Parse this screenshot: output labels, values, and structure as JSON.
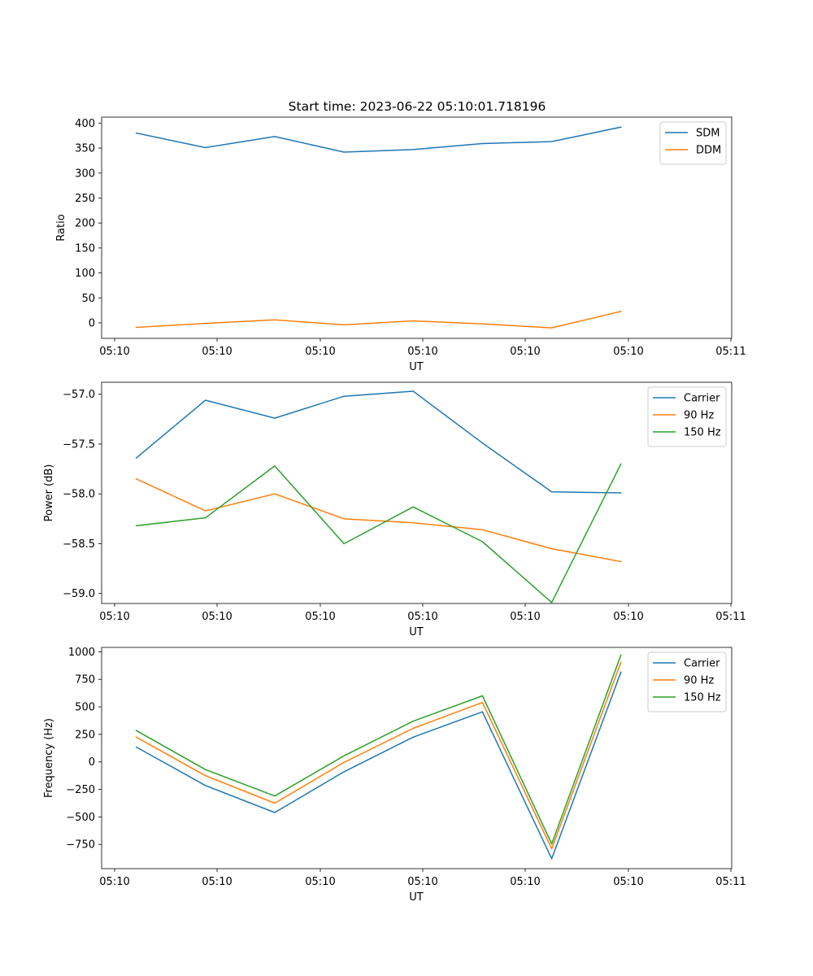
{
  "figure": {
    "title": "Start time: 2023-06-22 05:10:01.718196"
  },
  "chart_data": [
    {
      "type": "line",
      "title": "Start time: 2023-06-22 05:10:01.718196",
      "xlabel": "UT",
      "ylabel": "Ratio",
      "x_tick_labels": [
        "05:10",
        "05:10",
        "05:10",
        "05:10",
        "05:10",
        "05:10",
        "05:11"
      ],
      "y_ticks": [
        0,
        50,
        100,
        150,
        200,
        250,
        300,
        350,
        400
      ],
      "ylim": [
        -31,
        412
      ],
      "x_index": [
        0,
        1,
        2,
        3,
        4,
        5,
        6,
        7
      ],
      "xlim": [
        -0.5,
        8.6
      ],
      "grid": false,
      "legend_position": "top-right",
      "series": [
        {
          "name": "SDM",
          "color": "#1f77b4",
          "values": [
            380,
            351,
            373,
            342,
            347,
            359,
            363,
            392
          ]
        },
        {
          "name": "DDM",
          "color": "#ff7f0e",
          "values": [
            -9,
            -1,
            6,
            -4,
            4,
            -2,
            -10,
            23
          ]
        }
      ]
    },
    {
      "type": "line",
      "title": "",
      "xlabel": "UT",
      "ylabel": "Power (dB)",
      "x_tick_labels": [
        "05:10",
        "05:10",
        "05:10",
        "05:10",
        "05:10",
        "05:10",
        "05:11"
      ],
      "y_ticks": [
        -59.0,
        -58.5,
        -58.0,
        -57.5,
        -57.0
      ],
      "ylim": [
        -59.1,
        -56.88
      ],
      "x_index": [
        0,
        1,
        2,
        3,
        4,
        5,
        6,
        7
      ],
      "xlim": [
        -0.5,
        8.6
      ],
      "grid": false,
      "legend_position": "top-right",
      "series": [
        {
          "name": "Carrier",
          "color": "#1f77b4",
          "values": [
            -57.64,
            -57.06,
            -57.24,
            -57.02,
            -56.97,
            -57.49,
            -57.98,
            -57.99
          ]
        },
        {
          "name": "90 Hz",
          "color": "#ff7f0e",
          "values": [
            -57.85,
            -58.17,
            -58.0,
            -58.25,
            -58.29,
            -58.36,
            -58.55,
            -58.68
          ]
        },
        {
          "name": "150 Hz",
          "color": "#2ca02c",
          "values": [
            -58.32,
            -58.24,
            -57.72,
            -58.5,
            -58.13,
            -58.48,
            -59.09,
            -57.7
          ]
        }
      ]
    },
    {
      "type": "line",
      "title": "",
      "xlabel": "UT",
      "ylabel": "Frequency (Hz)",
      "x_tick_labels": [
        "05:10",
        "05:10",
        "05:10",
        "05:10",
        "05:10",
        "05:10",
        "05:11"
      ],
      "y_ticks": [
        -750,
        -500,
        -250,
        0,
        250,
        500,
        750,
        1000
      ],
      "ylim": [
        -970,
        1040
      ],
      "x_index": [
        0,
        1,
        2,
        3,
        4,
        5,
        6,
        7
      ],
      "xlim": [
        -0.5,
        8.6
      ],
      "grid": false,
      "legend_position": "top-right",
      "series": [
        {
          "name": "Carrier",
          "color": "#1f77b4",
          "values": [
            135,
            -215,
            -460,
            -90,
            225,
            455,
            -880,
            815
          ]
        },
        {
          "name": "90 Hz",
          "color": "#ff7f0e",
          "values": [
            225,
            -125,
            -375,
            -5,
            305,
            540,
            -790,
            905
          ]
        },
        {
          "name": "150 Hz",
          "color": "#2ca02c",
          "values": [
            285,
            -70,
            -310,
            55,
            370,
            600,
            -745,
            970
          ]
        }
      ]
    }
  ]
}
